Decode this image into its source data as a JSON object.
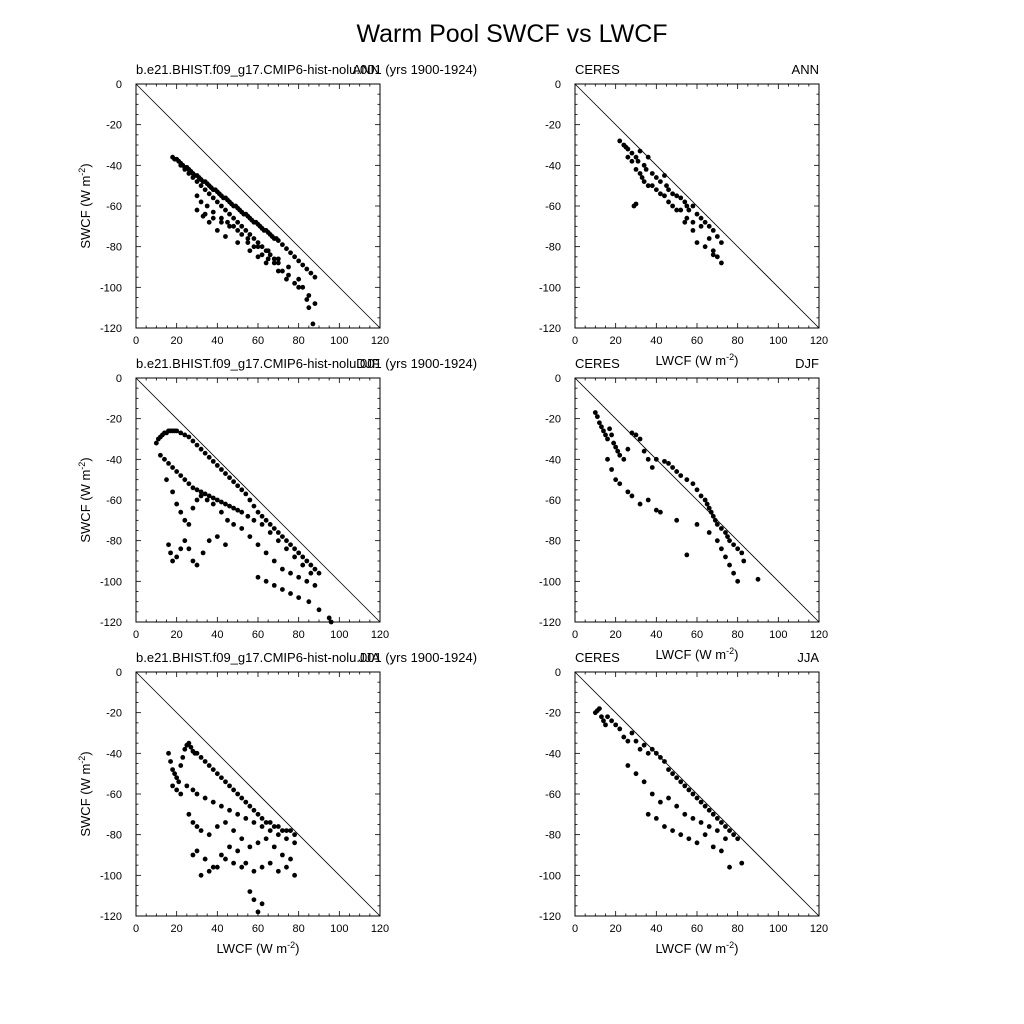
{
  "figure_title": "Warm Pool SWCF vs LWCF",
  "chart_data": [
    {
      "type": "scatter",
      "panel": "model-ann",
      "left_label": "b.e21.BHIST.f09_g17.CMIP6-hist-nolu.001 (yrs 1900-1924)",
      "right_label": "ANN",
      "xlabel": "",
      "ylabel": "SWCF (W m",
      "ylabel_sup": "-2",
      "ylabel_end": ")",
      "xlim": [
        0,
        120
      ],
      "ylim": [
        -120,
        0
      ],
      "xticks": [
        "0",
        "20",
        "40",
        "60",
        "80",
        "100",
        "120"
      ],
      "yticks": [
        "0",
        "-20",
        "-40",
        "-60",
        "-80",
        "-100",
        "-120"
      ],
      "reference_line": "y = -x",
      "x": [
        18,
        19,
        20,
        21,
        22,
        23,
        24,
        25,
        26,
        27,
        28,
        29,
        30,
        31,
        32,
        33,
        34,
        35,
        36,
        37,
        38,
        39,
        40,
        41,
        42,
        43,
        44,
        45,
        46,
        47,
        48,
        49,
        50,
        51,
        52,
        53,
        54,
        55,
        56,
        57,
        58,
        59,
        60,
        61,
        62,
        63,
        64,
        65,
        66,
        67,
        68,
        69,
        70,
        72,
        74,
        76,
        78,
        80,
        82,
        84,
        86,
        88,
        22,
        24,
        26,
        28,
        30,
        32,
        34,
        36,
        38,
        40,
        42,
        44,
        46,
        48,
        50,
        52,
        54,
        56,
        58,
        60,
        62,
        64,
        66,
        68,
        70,
        30,
        32,
        35,
        38,
        42,
        45,
        48,
        52,
        55,
        58,
        62,
        65,
        68,
        72,
        75,
        78,
        82,
        85,
        88,
        33,
        36,
        40,
        44,
        50,
        56,
        60,
        64,
        70,
        74,
        80,
        84,
        30,
        34,
        38,
        42,
        46,
        50,
        55,
        60,
        65,
        70,
        75,
        80,
        85,
        87
      ],
      "y": [
        -36,
        -37,
        -37,
        -38,
        -39,
        -40,
        -41,
        -41,
        -42,
        -43,
        -44,
        -45,
        -45,
        -46,
        -47,
        -48,
        -48,
        -49,
        -50,
        -51,
        -52,
        -52,
        -53,
        -54,
        -55,
        -56,
        -56,
        -57,
        -58,
        -59,
        -60,
        -60,
        -61,
        -62,
        -63,
        -64,
        -64,
        -65,
        -66,
        -67,
        -68,
        -68,
        -69,
        -70,
        -71,
        -72,
        -72,
        -73,
        -74,
        -75,
        -76,
        -76,
        -77,
        -79,
        -81,
        -83,
        -85,
        -87,
        -89,
        -91,
        -93,
        -95,
        -40,
        -42,
        -44,
        -46,
        -48,
        -50,
        -52,
        -54,
        -56,
        -58,
        -60,
        -62,
        -64,
        -66,
        -68,
        -70,
        -72,
        -74,
        -76,
        -78,
        -80,
        -82,
        -84,
        -86,
        -88,
        -55,
        -58,
        -60,
        -63,
        -66,
        -68,
        -70,
        -74,
        -78,
        -80,
        -84,
        -86,
        -88,
        -92,
        -94,
        -98,
        -100,
        -104,
        -108,
        -65,
        -68,
        -72,
        -75,
        -78,
        -82,
        -85,
        -88,
        -92,
        -96,
        -100,
        -106,
        -62,
        -64,
        -66,
        -68,
        -70,
        -72,
        -76,
        -80,
        -82,
        -86,
        -90,
        -96,
        -110,
        -118
      ]
    },
    {
      "type": "scatter",
      "panel": "ceres-ann",
      "left_label": "CERES",
      "right_label": "ANN",
      "xlabel": "LWCF (W m",
      "xlabel_sup": "-2",
      "xlabel_end": ")",
      "ylabel": "",
      "xlim": [
        0,
        120
      ],
      "ylim": [
        -120,
        0
      ],
      "xticks": [
        "0",
        "20",
        "40",
        "60",
        "80",
        "100",
        "120"
      ],
      "yticks": [
        "0",
        "-20",
        "-40",
        "-60",
        "-80",
        "-100",
        "-120"
      ],
      "reference_line": "y = -x",
      "x": [
        22,
        24,
        25,
        26,
        28,
        30,
        31,
        32,
        34,
        35,
        36,
        38,
        40,
        42,
        44,
        45,
        46,
        48,
        50,
        52,
        54,
        55,
        56,
        58,
        60,
        62,
        64,
        66,
        68,
        70,
        72,
        26,
        28,
        30,
        33,
        36,
        40,
        44,
        48,
        52,
        55,
        58,
        62,
        66,
        68,
        70,
        32,
        34,
        38,
        42,
        46,
        50,
        54,
        58,
        60,
        64,
        68,
        72,
        29,
        30
      ],
      "y": [
        -28,
        -30,
        -31,
        -32,
        -34,
        -36,
        -38,
        -33,
        -40,
        -42,
        -36,
        -44,
        -46,
        -48,
        -45,
        -50,
        -52,
        -54,
        -55,
        -56,
        -58,
        -60,
        -62,
        -60,
        -64,
        -66,
        -68,
        -70,
        -72,
        -75,
        -78,
        -36,
        -38,
        -42,
        -46,
        -50,
        -52,
        -55,
        -60,
        -62,
        -66,
        -68,
        -70,
        -76,
        -82,
        -85,
        -44,
        -48,
        -50,
        -54,
        -58,
        -62,
        -68,
        -72,
        -78,
        -80,
        -84,
        -88,
        -60,
        -59
      ]
    },
    {
      "type": "scatter",
      "panel": "model-djf",
      "left_label": "b.e21.BHIST.f09_g17.CMIP6-hist-nolu.001 (yrs 1900-1924)",
      "right_label": "DJF",
      "xlabel": "",
      "ylabel": "SWCF (W m",
      "ylabel_sup": "-2",
      "ylabel_end": ")",
      "xlim": [
        0,
        120
      ],
      "ylim": [
        -120,
        0
      ],
      "xticks": [
        "0",
        "20",
        "40",
        "60",
        "80",
        "100",
        "120"
      ],
      "yticks": [
        "0",
        "-20",
        "-40",
        "-60",
        "-80",
        "-100",
        "-120"
      ],
      "reference_line": "y = -x",
      "x": [
        10,
        11,
        12,
        13,
        14,
        15,
        16,
        17,
        18,
        19,
        20,
        22,
        24,
        26,
        28,
        30,
        32,
        34,
        36,
        38,
        40,
        42,
        44,
        46,
        48,
        50,
        52,
        54,
        56,
        58,
        60,
        62,
        64,
        66,
        68,
        70,
        72,
        74,
        76,
        78,
        80,
        82,
        84,
        86,
        88,
        90,
        12,
        14,
        16,
        18,
        20,
        22,
        24,
        26,
        28,
        30,
        32,
        34,
        36,
        38,
        40,
        42,
        44,
        46,
        48,
        50,
        52,
        55,
        58,
        62,
        66,
        70,
        74,
        78,
        82,
        86,
        15,
        18,
        20,
        22,
        24,
        26,
        28,
        30,
        32,
        35,
        38,
        42,
        45,
        48,
        52,
        56,
        60,
        64,
        68,
        72,
        76,
        80,
        84,
        88,
        16,
        17,
        18,
        20,
        22,
        24,
        26,
        28,
        30,
        33,
        36,
        40,
        44,
        60,
        64,
        68,
        72,
        76,
        80,
        85,
        90,
        95,
        96
      ],
      "y": [
        -32,
        -30,
        -29,
        -28,
        -27,
        -27,
        -26,
        -26,
        -26,
        -26,
        -26,
        -27,
        -28,
        -29,
        -31,
        -33,
        -35,
        -37,
        -39,
        -41,
        -43,
        -45,
        -47,
        -49,
        -51,
        -53,
        -55,
        -57,
        -60,
        -63,
        -66,
        -68,
        -70,
        -72,
        -74,
        -76,
        -78,
        -80,
        -82,
        -84,
        -86,
        -88,
        -90,
        -92,
        -94,
        -96,
        -38,
        -40,
        -42,
        -44,
        -46,
        -48,
        -50,
        -52,
        -54,
        -55,
        -56,
        -57,
        -58,
        -59,
        -60,
        -61,
        -62,
        -63,
        -64,
        -65,
        -66,
        -68,
        -70,
        -72,
        -76,
        -80,
        -84,
        -88,
        -92,
        -96,
        -50,
        -56,
        -62,
        -66,
        -70,
        -72,
        -64,
        -60,
        -58,
        -60,
        -62,
        -66,
        -70,
        -72,
        -74,
        -78,
        -82,
        -86,
        -90,
        -94,
        -96,
        -98,
        -100,
        -102,
        -82,
        -86,
        -90,
        -88,
        -84,
        -80,
        -84,
        -90,
        -92,
        -86,
        -80,
        -78,
        -82,
        -98,
        -100,
        -102,
        -104,
        -106,
        -108,
        -110,
        -114,
        -118,
        -120
      ]
    },
    {
      "type": "scatter",
      "panel": "ceres-djf",
      "left_label": "CERES",
      "right_label": "DJF",
      "xlabel": "LWCF (W m",
      "xlabel_sup": "-2",
      "xlabel_end": ")",
      "ylabel": "",
      "xlim": [
        0,
        120
      ],
      "ylim": [
        -120,
        0
      ],
      "xticks": [
        "0",
        "20",
        "40",
        "60",
        "80",
        "100",
        "120"
      ],
      "yticks": [
        "0",
        "-20",
        "-40",
        "-60",
        "-80",
        "-100",
        "-120"
      ],
      "reference_line": "y = -x",
      "x": [
        10,
        11,
        12,
        13,
        14,
        15,
        16,
        17,
        18,
        19,
        20,
        21,
        22,
        24,
        26,
        28,
        30,
        32,
        34,
        36,
        38,
        40,
        44,
        46,
        48,
        50,
        52,
        55,
        58,
        60,
        62,
        64,
        65,
        66,
        67,
        68,
        69,
        70,
        72,
        74,
        75,
        76,
        78,
        80,
        82,
        83,
        90,
        16,
        18,
        20,
        22,
        26,
        28,
        32,
        36,
        40,
        42,
        50,
        55,
        60,
        66,
        70,
        72,
        74,
        76,
        78,
        80
      ],
      "y": [
        -17,
        -19,
        -22,
        -24,
        -26,
        -28,
        -30,
        -25,
        -28,
        -32,
        -34,
        -36,
        -38,
        -40,
        -35,
        -27,
        -28,
        -30,
        -36,
        -40,
        -44,
        -40,
        -41,
        -42,
        -44,
        -46,
        -48,
        -50,
        -52,
        -55,
        -58,
        -60,
        -62,
        -64,
        -66,
        -68,
        -70,
        -72,
        -74,
        -76,
        -78,
        -80,
        -82,
        -84,
        -86,
        -90,
        -99,
        -40,
        -45,
        -50,
        -52,
        -56,
        -58,
        -62,
        -60,
        -65,
        -66,
        -70,
        -87,
        -72,
        -76,
        -80,
        -84,
        -88,
        -92,
        -96,
        -100
      ]
    },
    {
      "type": "scatter",
      "panel": "model-jja",
      "left_label": "b.e21.BHIST.f09_g17.CMIP6-hist-nolu.001 (yrs 1900-1924)",
      "right_label": "JJA",
      "xlabel": "LWCF (W m",
      "xlabel_sup": "-2",
      "xlabel_end": ")",
      "ylabel": "SWCF (W m",
      "ylabel_sup": "-2",
      "ylabel_end": ")",
      "xlim": [
        0,
        120
      ],
      "ylim": [
        -120,
        0
      ],
      "xticks": [
        "0",
        "20",
        "40",
        "60",
        "80",
        "100",
        "120"
      ],
      "yticks": [
        "0",
        "-20",
        "-40",
        "-60",
        "-80",
        "-100",
        "-120"
      ],
      "reference_line": "y = -x",
      "x": [
        16,
        17,
        18,
        19,
        20,
        21,
        22,
        23,
        24,
        25,
        26,
        27,
        28,
        29,
        30,
        32,
        34,
        36,
        38,
        40,
        42,
        44,
        46,
        48,
        50,
        52,
        54,
        56,
        58,
        60,
        62,
        64,
        66,
        68,
        70,
        72,
        74,
        76,
        78,
        18,
        20,
        22,
        25,
        28,
        30,
        34,
        38,
        42,
        46,
        50,
        54,
        58,
        62,
        66,
        70,
        74,
        78,
        26,
        28,
        30,
        32,
        36,
        40,
        44,
        48,
        52,
        56,
        60,
        64,
        68,
        72,
        76,
        28,
        30,
        34,
        38,
        42,
        46,
        50,
        54,
        58,
        62,
        66,
        70,
        74,
        78,
        32,
        36,
        40,
        44,
        48,
        52,
        56,
        58,
        60,
        62
      ],
      "y": [
        -40,
        -44,
        -48,
        -50,
        -52,
        -54,
        -46,
        -42,
        -38,
        -36,
        -35,
        -37,
        -39,
        -40,
        -40,
        -42,
        -44,
        -46,
        -48,
        -50,
        -52,
        -54,
        -56,
        -58,
        -60,
        -62,
        -64,
        -66,
        -68,
        -70,
        -72,
        -74,
        -74,
        -76,
        -76,
        -78,
        -78,
        -78,
        -80,
        -56,
        -58,
        -60,
        -56,
        -58,
        -60,
        -62,
        -64,
        -66,
        -68,
        -70,
        -72,
        -74,
        -76,
        -78,
        -80,
        -82,
        -84,
        -70,
        -74,
        -76,
        -78,
        -80,
        -76,
        -74,
        -78,
        -82,
        -86,
        -84,
        -82,
        -86,
        -90,
        -92,
        -90,
        -88,
        -92,
        -96,
        -90,
        -86,
        -88,
        -94,
        -98,
        -96,
        -94,
        -98,
        -96,
        -100,
        -100,
        -98,
        -96,
        -92,
        -94,
        -96,
        -108,
        -112,
        -118,
        -114
      ]
    },
    {
      "type": "scatter",
      "panel": "ceres-jja",
      "left_label": "CERES",
      "right_label": "JJA",
      "xlabel": "LWCF (W m",
      "xlabel_sup": "-2",
      "xlabel_end": ")",
      "ylabel": "",
      "xlim": [
        0,
        120
      ],
      "ylim": [
        -120,
        0
      ],
      "xticks": [
        "0",
        "20",
        "40",
        "60",
        "80",
        "100",
        "120"
      ],
      "yticks": [
        "0",
        "-20",
        "-40",
        "-60",
        "-80",
        "-100",
        "-120"
      ],
      "reference_line": "y = -x",
      "x": [
        10,
        11,
        12,
        13,
        14,
        15,
        16,
        18,
        20,
        22,
        24,
        26,
        28,
        30,
        32,
        34,
        36,
        38,
        40,
        42,
        44,
        46,
        48,
        50,
        52,
        54,
        56,
        58,
        60,
        62,
        64,
        66,
        68,
        70,
        72,
        74,
        76,
        78,
        80,
        82,
        26,
        30,
        34,
        38,
        42,
        46,
        50,
        54,
        58,
        62,
        66,
        70,
        74,
        36,
        40,
        44,
        48,
        52,
        56,
        60,
        64,
        68,
        72,
        76
      ],
      "y": [
        -20,
        -19,
        -18,
        -22,
        -24,
        -26,
        -22,
        -24,
        -26,
        -28,
        -32,
        -34,
        -30,
        -34,
        -38,
        -36,
        -40,
        -38,
        -40,
        -42,
        -44,
        -48,
        -50,
        -52,
        -54,
        -56,
        -58,
        -60,
        -62,
        -64,
        -66,
        -68,
        -70,
        -72,
        -74,
        -76,
        -78,
        -80,
        -82,
        -94,
        -46,
        -50,
        -54,
        -60,
        -64,
        -62,
        -66,
        -70,
        -72,
        -74,
        -76,
        -78,
        -82,
        -70,
        -72,
        -76,
        -78,
        -80,
        -82,
        -84,
        -80,
        -86,
        -88,
        -96
      ]
    }
  ]
}
